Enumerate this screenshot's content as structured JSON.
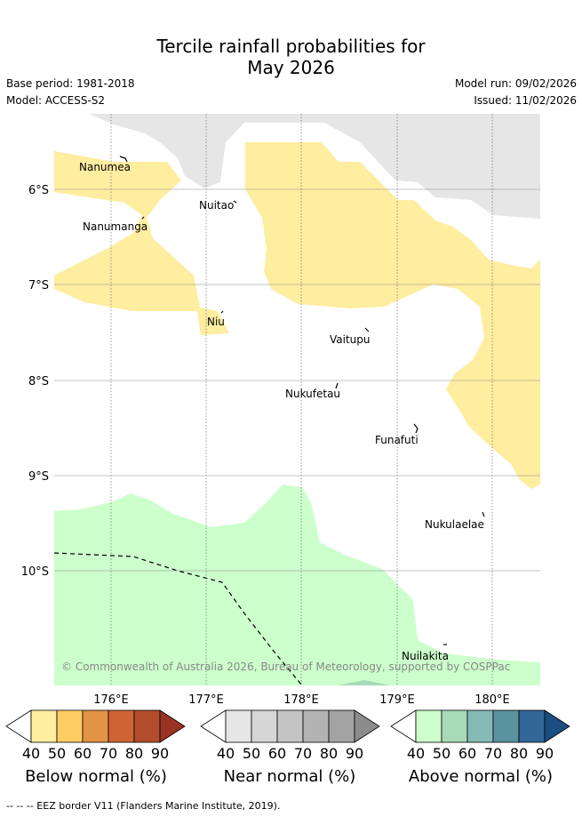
{
  "title": {
    "line1": "Tercile rainfall probabilities for",
    "line2": "May 2026"
  },
  "info": {
    "base_period": "Base period: 1981-2018",
    "model": "Model: ACCESS-S2",
    "model_run": "Model run: 09/02/2026",
    "issued": "Issued: 11/02/2026"
  },
  "map": {
    "y_ticks": [
      "6°S",
      "7°S",
      "8°S",
      "9°S",
      "10°S"
    ],
    "x_ticks": [
      "176°E",
      "177°E",
      "178°E",
      "179°E",
      "180°E"
    ],
    "places": [
      "Nanumea",
      "Nuitao",
      "Nanumanga",
      "Niu",
      "Vaitupu",
      "Nukufetau",
      "Funafuti",
      "Nukulaelae",
      "Nuilakita"
    ],
    "copyright": "© Commonwealth of Australia 2026, Bureau of Meteorology, supported by COSPPac",
    "colors": {
      "below_normal": "#ffeda0",
      "near_normal": "#e6e6e6",
      "above_normal": "#ccffcc",
      "above_normal_50": "#a8dab8",
      "land_mask": "#ffffff"
    }
  },
  "colorbars": [
    {
      "label": "Below normal (%)",
      "ticks": [
        "40",
        "50",
        "60",
        "70",
        "80",
        "90"
      ],
      "colors": [
        "#ffffff",
        "#ffeda0",
        "#fecd63",
        "#e39346",
        "#cf6433",
        "#b34d2b",
        "#993324"
      ]
    },
    {
      "label": "Near normal (%)",
      "ticks": [
        "40",
        "50",
        "60",
        "70",
        "80",
        "90"
      ],
      "colors": [
        "#ffffff",
        "#e6e6e6",
        "#d6d6d6",
        "#c4c4c4",
        "#b3b3b3",
        "#a3a3a3",
        "#8c8c8c"
      ]
    },
    {
      "label": "Above normal (%)",
      "ticks": [
        "40",
        "50",
        "60",
        "70",
        "80",
        "90"
      ],
      "colors": [
        "#ffffff",
        "#ccffcc",
        "#a8dab8",
        "#85bab6",
        "#5a92a0",
        "#336699",
        "#1a4d80"
      ]
    }
  ],
  "footer": "--  --  -- EEZ border V11 (Flanders Marine Institute, 2019)."
}
